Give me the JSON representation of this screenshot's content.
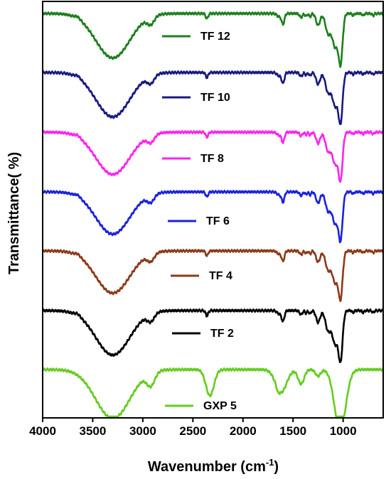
{
  "chart_data": {
    "type": "line",
    "title": "",
    "xlabel_main": "Wavenumber (cm",
    "xlabel_sup": "-1",
    "xlabel_close": ")",
    "ylabel": "Transmittance( %)",
    "xlim": [
      4000,
      600
    ],
    "x_reversed": true,
    "y_ticks_shown": false,
    "grid": false,
    "x_ticks": [
      "4000",
      "3500",
      "3000",
      "2500",
      "2000",
      "1500",
      "1000"
    ],
    "x_tick_values": [
      4000,
      3500,
      3000,
      2500,
      2000,
      1500,
      1000
    ],
    "series": [
      {
        "name": "TF 12",
        "color": "#1e7f1e",
        "offset": 6,
        "depth_scale": 1.0
      },
      {
        "name": "TF 10",
        "color": "#1a1a80",
        "offset": 5,
        "depth_scale": 1.0
      },
      {
        "name": "TF 8",
        "color": "#ff22ee",
        "offset": 4,
        "depth_scale": 0.95
      },
      {
        "name": "TF 6",
        "color": "#1a22dd",
        "offset": 3,
        "depth_scale": 0.95
      },
      {
        "name": "TF 4",
        "color": "#8b3a1a",
        "offset": 2,
        "depth_scale": 0.95
      },
      {
        "name": "TF 2",
        "color": "#000000",
        "offset": 1,
        "depth_scale": 1.0
      },
      {
        "name": "GXP 5",
        "color": "#66cc22",
        "offset": 0,
        "depth_scale": 1.0,
        "variant": "gxp"
      }
    ],
    "bands_common": [
      {
        "center": 3650,
        "width": 25,
        "depth": -0.03
      },
      {
        "center": 3300,
        "width": 170,
        "depth": 0.68
      },
      {
        "center": 2920,
        "width": 35,
        "depth": 0.12
      },
      {
        "center": 2360,
        "width": 12,
        "depth": 0.08
      },
      {
        "center": 1640,
        "width": 20,
        "depth": 0.05
      },
      {
        "center": 1600,
        "width": 14,
        "depth": 0.16
      },
      {
        "center": 1420,
        "width": 14,
        "depth": 0.06
      },
      {
        "center": 1370,
        "width": 10,
        "depth": 0.04
      },
      {
        "center": 1330,
        "width": 10,
        "depth": 0.05
      },
      {
        "center": 1250,
        "width": 20,
        "depth": 0.18
      },
      {
        "center": 1150,
        "width": 26,
        "depth": 0.3
      },
      {
        "center": 1080,
        "width": 28,
        "depth": 0.5
      },
      {
        "center": 1025,
        "width": 20,
        "depth": 0.72
      },
      {
        "center": 900,
        "width": 10,
        "depth": 0.03
      },
      {
        "center": 800,
        "width": 10,
        "depth": 0.03
      },
      {
        "center": 700,
        "width": 10,
        "depth": 0.03
      }
    ],
    "bands_gxp": [
      {
        "center": 3300,
        "width": 170,
        "depth": 0.75
      },
      {
        "center": 2920,
        "width": 40,
        "depth": 0.2
      },
      {
        "center": 2330,
        "width": 40,
        "depth": 0.4
      },
      {
        "center": 1620,
        "width": 55,
        "depth": 0.35
      },
      {
        "center": 1420,
        "width": 30,
        "depth": 0.22
      },
      {
        "center": 1250,
        "width": 25,
        "depth": 0.1
      },
      {
        "center": 1030,
        "width": 55,
        "depth": 0.95
      },
      {
        "center": 1650,
        "width": 12,
        "depth": 0.05
      }
    ]
  }
}
